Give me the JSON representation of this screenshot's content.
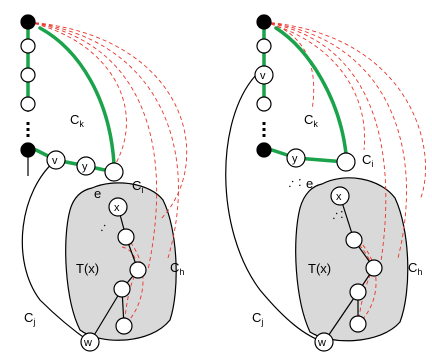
{
  "left_panel": {
    "labels": {
      "ck": "C",
      "ck_sub": "k",
      "ci": "C",
      "ci_sub": "i",
      "ch": "C",
      "ch_sub": "h",
      "cj": "C",
      "cj_sub": "j",
      "tx": "T(x)",
      "e": "e",
      "v": "v",
      "y": "y",
      "x": "x",
      "w": "w",
      "ellipsis": ":"
    }
  },
  "right_panel": {
    "labels": {
      "ck": "C",
      "ck_sub": "k",
      "ci": "C",
      "ci_sub": "i",
      "ch": "C",
      "ch_sub": "h",
      "cj": "C",
      "cj_sub": "j",
      "tx": "T(x)",
      "e": "e",
      "v": "v",
      "y": "y",
      "x": "x",
      "w": "w",
      "ellipsis": ":"
    }
  },
  "colors": {
    "green": "#1aa34a",
    "red": "#e8362b",
    "region": "#d9d9d9"
  }
}
